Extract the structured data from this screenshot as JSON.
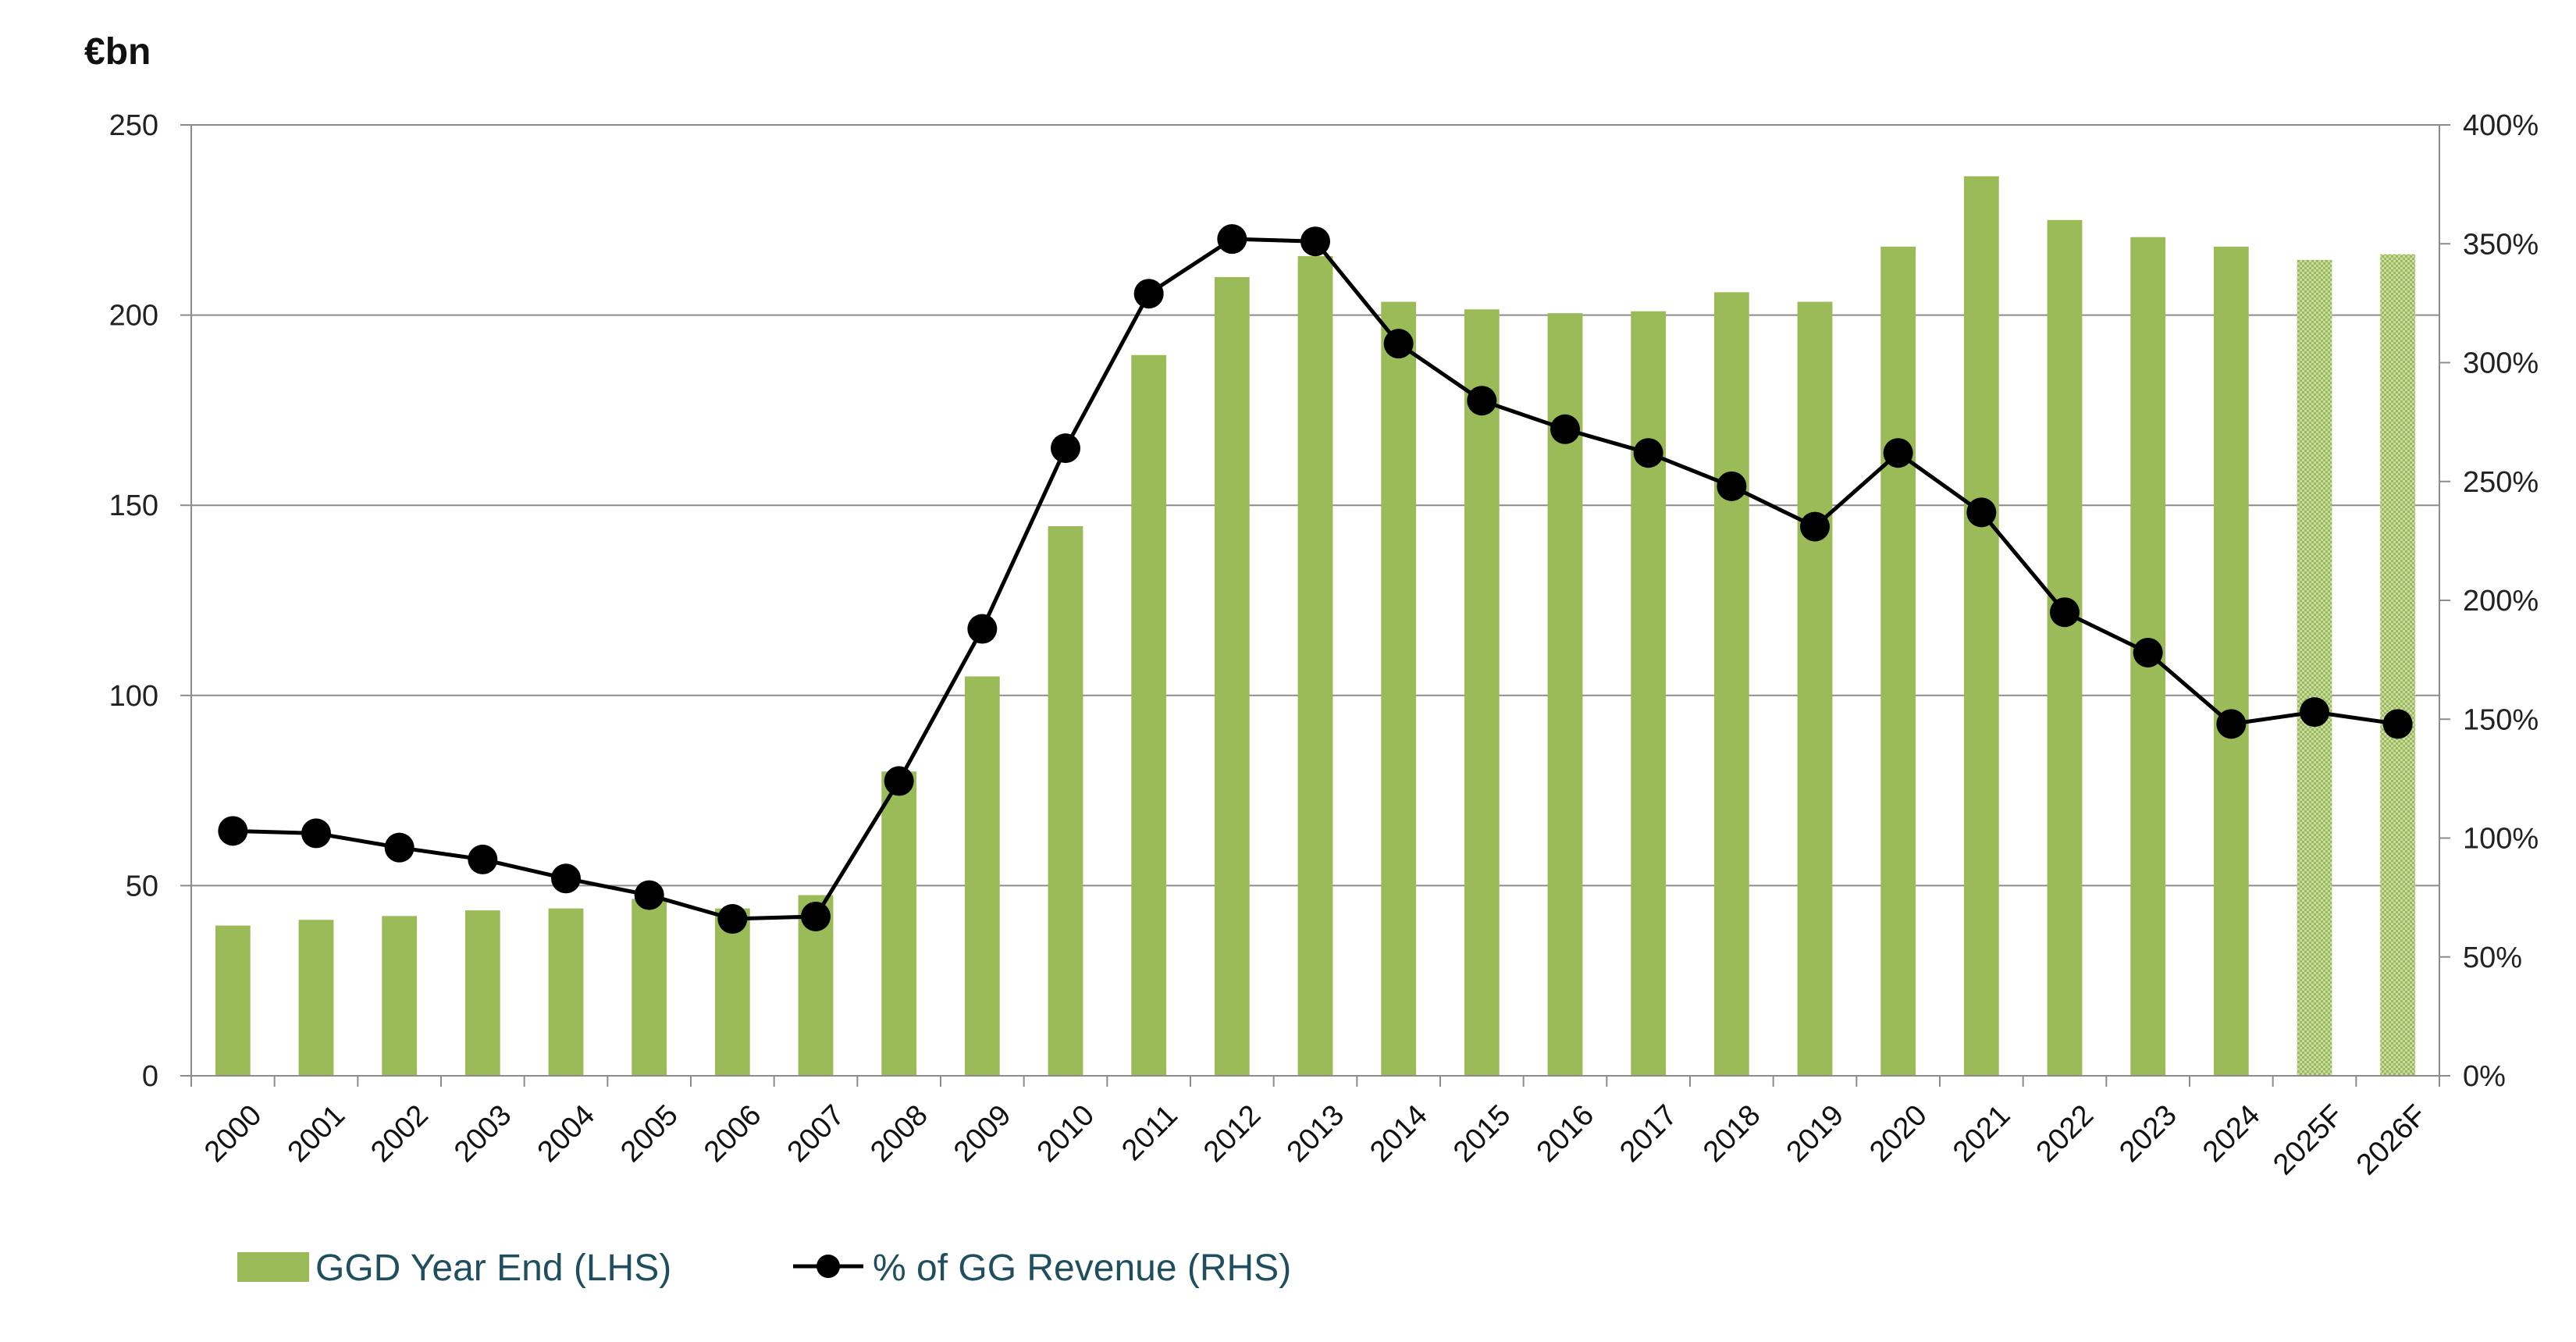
{
  "chart_data": {
    "type": "bar+line",
    "title": "",
    "unit_label": "€bn",
    "categories": [
      "2000",
      "2001",
      "2002",
      "2003",
      "2004",
      "2005",
      "2006",
      "2007",
      "2008",
      "2009",
      "2010",
      "2011",
      "2012",
      "2013",
      "2014",
      "2015",
      "2016",
      "2017",
      "2018",
      "2019",
      "2020",
      "2021",
      "2022",
      "2023",
      "2024",
      "2025F",
      "2026F"
    ],
    "series": [
      {
        "name": "GGD Year End (LHS)",
        "type": "bar",
        "axis": "left",
        "color": "#9bbb59",
        "forecast_from_index": 25,
        "values": [
          39.5,
          41,
          42,
          43.5,
          44,
          46.5,
          44,
          47.5,
          80,
          105,
          144.5,
          189.5,
          210,
          215.5,
          203.5,
          201.5,
          200.5,
          201,
          206,
          203.5,
          218,
          236.5,
          225,
          220.5,
          218,
          214.5,
          216
        ]
      },
      {
        "name": "% of GG Revenue (RHS)",
        "type": "line",
        "axis": "right",
        "color": "#000000",
        "values": [
          103,
          102,
          96,
          91,
          83,
          76,
          66,
          67,
          124,
          188,
          264,
          329,
          352,
          351,
          308,
          284,
          272,
          262,
          248,
          231,
          262,
          237,
          195,
          178,
          148,
          153,
          148
        ]
      }
    ],
    "y_left": {
      "min": 0,
      "max": 250,
      "ticks": [
        "0",
        "50",
        "100",
        "150",
        "200",
        "250"
      ]
    },
    "y_right": {
      "min": 0,
      "max": 400,
      "ticks": [
        "0%",
        "50%",
        "100%",
        "150%",
        "200%",
        "250%",
        "300%",
        "350%",
        "400%"
      ]
    },
    "grid": "horizontal",
    "legend_position": "bottom-left"
  }
}
